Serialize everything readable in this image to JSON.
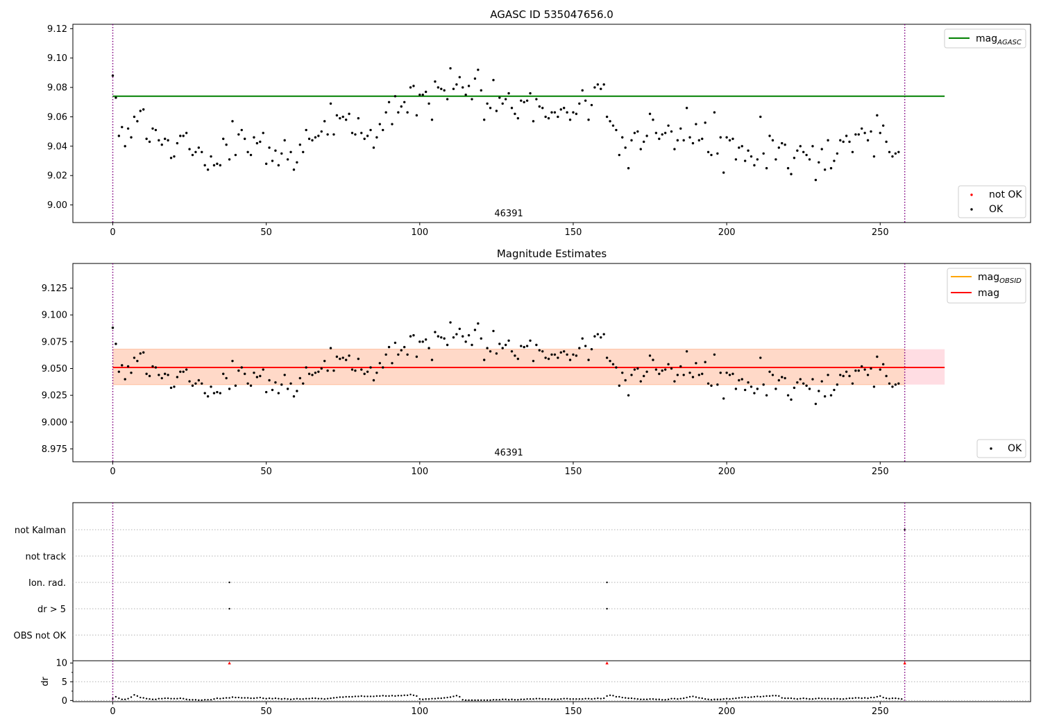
{
  "chart_data": [
    {
      "type": "scatter",
      "title": "AGASC ID 535047656.0",
      "xlim": [
        -13,
        299
      ],
      "ylim": [
        8.988,
        9.123
      ],
      "x_ticks": [
        0,
        50,
        100,
        150,
        200,
        250
      ],
      "y_ticks": [
        "9.00",
        "9.02",
        "9.04",
        "9.06",
        "9.08",
        "9.10",
        "9.12"
      ],
      "y_tick_values": [
        9.0,
        9.02,
        9.04,
        9.06,
        9.08,
        9.1,
        9.12
      ],
      "obsid_label": "46391",
      "obsid_label_x": 129,
      "vlines_x": [
        0,
        258
      ],
      "hline": {
        "y": 9.074,
        "x_range": [
          0,
          271
        ],
        "color": "#008000"
      },
      "legend_top": [
        {
          "label": "mag",
          "sub": "AGASC",
          "color": "#008000"
        }
      ],
      "legend_bottom": [
        {
          "label": "not OK",
          "color": "#ff0000"
        },
        {
          "label": "OK",
          "color": "#000000"
        }
      ],
      "series": [
        {
          "name": "OK",
          "color": "#000000",
          "values": "shared.mag"
        }
      ]
    },
    {
      "type": "scatter",
      "title": "Magnitude Estimates",
      "xlim": [
        -13,
        299
      ],
      "ylim": [
        8.963,
        9.148
      ],
      "x_ticks": [
        0,
        50,
        100,
        150,
        200,
        250
      ],
      "y_ticks": [
        "8.975",
        "9.000",
        "9.025",
        "9.050",
        "9.075",
        "9.100",
        "9.125"
      ],
      "y_tick_values": [
        8.975,
        9.0,
        9.025,
        9.05,
        9.075,
        9.1,
        9.125
      ],
      "obsid_label": "46391",
      "obsid_label_x": 129,
      "vlines_x": [
        0,
        258
      ],
      "mag_line": {
        "y": 9.051,
        "x_range": [
          0,
          271
        ],
        "color": "#ff0000"
      },
      "band_outer": {
        "y": [
          9.035,
          9.068
        ],
        "color": "#ffdde3"
      },
      "band_inner": {
        "y": [
          9.035,
          9.068
        ],
        "x_range": [
          0,
          258
        ],
        "color": "#ffd9c8"
      },
      "legend_top": [
        {
          "label": "mag",
          "sub": "OBSID",
          "color": "#ffa500"
        },
        {
          "label": "mag",
          "sub": "",
          "color": "#ff0000"
        }
      ],
      "legend_bottom": [
        {
          "label": "OK",
          "color": "#000000"
        }
      ],
      "series": [
        {
          "name": "OK",
          "color": "#000000",
          "values": "shared.mag"
        }
      ]
    },
    {
      "type": "scatter",
      "xlim": [
        -13,
        299
      ],
      "flag_labels": [
        "not Kalman",
        "not track",
        "Ion. rad.",
        "dr > 5",
        "OBS not OK"
      ],
      "flag_points": [
        {
          "flag": "not Kalman",
          "x": 258
        },
        {
          "flag": "Ion. rad.",
          "x": 38
        },
        {
          "flag": "Ion. rad.",
          "x": 161
        },
        {
          "flag": "dr > 5",
          "x": 38
        },
        {
          "flag": "dr > 5",
          "x": 161
        }
      ],
      "vlines_x": [
        0,
        258
      ]
    },
    {
      "type": "scatter",
      "xlim": [
        -13,
        299
      ],
      "ylim": [
        -0.3,
        10.6
      ],
      "ylabel": "dr",
      "x_ticks": [
        0,
        50,
        100,
        150,
        200,
        250
      ],
      "y_ticks": [
        "0",
        "5",
        "10"
      ],
      "y_tick_values": [
        0,
        5,
        10
      ],
      "capped_points": [
        {
          "x": 38,
          "y": 10
        },
        {
          "x": 161,
          "y": 10
        },
        {
          "x": 258,
          "y": 10
        }
      ],
      "vlines_x": [
        0,
        258
      ],
      "series": [
        {
          "name": "dr",
          "color": "#000000",
          "values": "shared.dr"
        }
      ]
    }
  ],
  "shared": {
    "mag": [
      9.088,
      9.073,
      9.047,
      9.053,
      9.04,
      9.052,
      9.046,
      9.06,
      9.057,
      9.064,
      9.065,
      9.045,
      9.043,
      9.052,
      9.051,
      9.044,
      9.041,
      9.045,
      9.044,
      9.032,
      9.033,
      9.042,
      9.047,
      9.047,
      9.049,
      9.038,
      9.034,
      9.036,
      9.039,
      9.036,
      9.027,
      9.024,
      9.033,
      9.027,
      9.028,
      9.027,
      9.045,
      9.041,
      9.031,
      9.057,
      9.034,
      9.048,
      9.051,
      9.045,
      9.036,
      9.034,
      9.046,
      9.042,
      9.043,
      9.049,
      9.028,
      9.039,
      9.03,
      9.037,
      9.027,
      9.035,
      9.044,
      9.031,
      9.036,
      9.024,
      9.029,
      9.041,
      9.036,
      9.051,
      9.045,
      9.044,
      9.046,
      9.047,
      9.05,
      9.057,
      9.048,
      9.069,
      9.048,
      9.061,
      9.059,
      9.06,
      9.058,
      9.062,
      9.049,
      9.048,
      9.059,
      9.049,
      9.045,
      9.047,
      9.051,
      9.039,
      9.046,
      9.055,
      9.051,
      9.063,
      9.07,
      9.055,
      9.074,
      9.063,
      9.067,
      9.07,
      9.063,
      9.08,
      9.081,
      9.061,
      9.075,
      9.075,
      9.077,
      9.069,
      9.058,
      9.084,
      9.08,
      9.079,
      9.078,
      9.072,
      9.093,
      9.079,
      9.082,
      9.087,
      9.08,
      9.075,
      9.081,
      9.072,
      9.086,
      9.092,
      9.078,
      9.058,
      9.069,
      9.066,
      9.085,
      9.064,
      9.073,
      9.069,
      9.072,
      9.076,
      9.066,
      9.062,
      9.059,
      9.071,
      9.07,
      9.071,
      9.076,
      9.057,
      9.072,
      9.067,
      9.066,
      9.06,
      9.059,
      9.063,
      9.063,
      9.06,
      9.065,
      9.066,
      9.063,
      9.058,
      9.063,
      9.062,
      9.069,
      9.078,
      9.071,
      9.058,
      9.068,
      9.08,
      9.082,
      9.079,
      9.082,
      9.06,
      9.057,
      9.054,
      9.051,
      9.034,
      9.046,
      9.039,
      9.025,
      9.044,
      9.049,
      9.05,
      9.038,
      9.043,
      9.047,
      9.062,
      9.058,
      9.049,
      9.045,
      9.048,
      9.049,
      9.054,
      9.05,
      9.038,
      9.044,
      9.052,
      9.044,
      9.066,
      9.046,
      9.042,
      9.055,
      9.044,
      9.045,
      9.056,
      9.036,
      9.034,
      9.063,
      9.035,
      9.046,
      9.022,
      9.046,
      9.044,
      9.045,
      9.031,
      9.039,
      9.04,
      9.03,
      9.037,
      9.033,
      9.027,
      9.031,
      9.06,
      9.035,
      9.025,
      9.047,
      9.044,
      9.031,
      9.039,
      9.042,
      9.041,
      9.025,
      9.021,
      9.032,
      9.037,
      9.04,
      9.036,
      9.034,
      9.031,
      9.04,
      9.017,
      9.029,
      9.038,
      9.024,
      9.044,
      9.025,
      9.03,
      9.035,
      9.044,
      9.043,
      9.047,
      9.043,
      9.036,
      9.048,
      9.048,
      9.052,
      9.049,
      9.044,
      9.05,
      9.033,
      9.061,
      9.049,
      9.054,
      9.043,
      9.036,
      9.033,
      9.035,
      9.036
    ],
    "dr": [
      0.5,
      1.0,
      0.6,
      0.3,
      0.3,
      0.5,
      0.9,
      1.5,
      1.2,
      0.8,
      0.7,
      0.5,
      0.4,
      0.3,
      0.3,
      0.5,
      0.5,
      0.6,
      0.6,
      0.5,
      0.5,
      0.5,
      0.6,
      0.5,
      0.3,
      0.2,
      0.2,
      0.2,
      0.1,
      0.1,
      0.2,
      0.2,
      0.2,
      0.4,
      0.6,
      0.5,
      0.6,
      0.7,
      0.7,
      0.9,
      0.8,
      0.8,
      0.7,
      0.7,
      0.7,
      0.6,
      0.6,
      0.7,
      0.8,
      0.6,
      0.5,
      0.6,
      0.5,
      0.6,
      0.5,
      0.4,
      0.5,
      0.4,
      0.3,
      0.4,
      0.5,
      0.4,
      0.4,
      0.5,
      0.5,
      0.6,
      0.6,
      0.5,
      0.5,
      0.4,
      0.5,
      0.6,
      0.7,
      0.8,
      0.9,
      0.9,
      1.0,
      1.0,
      1.0,
      1.1,
      1.1,
      1.2,
      1.1,
      1.1,
      1.1,
      1.1,
      1.2,
      1.2,
      1.3,
      1.2,
      1.2,
      1.3,
      1.2,
      1.3,
      1.3,
      1.4,
      1.4,
      1.6,
      1.4,
      1.2,
      0.4,
      0.3,
      0.4,
      0.4,
      0.5,
      0.5,
      0.6,
      0.6,
      0.7,
      0.8,
      0.9,
      1.1,
      1.3,
      1.0,
      0.2,
      0.1,
      0.1,
      0.1,
      0.1,
      0.1,
      0.1,
      0.1,
      0.1,
      0.1,
      0.2,
      0.2,
      0.2,
      0.3,
      0.3,
      0.2,
      0.3,
      0.2,
      0.2,
      0.3,
      0.3,
      0.4,
      0.4,
      0.4,
      0.5,
      0.5,
      0.4,
      0.4,
      0.4,
      0.3,
      0.3,
      0.3,
      0.4,
      0.5,
      0.5,
      0.4,
      0.4,
      0.4,
      0.4,
      0.4,
      0.5,
      0.5,
      0.4,
      0.5,
      0.6,
      0.5,
      0.6,
      1.2,
      1.4,
      1.3,
      1.0,
      1.0,
      0.8,
      0.7,
      0.6,
      0.6,
      0.5,
      0.4,
      0.3,
      0.3,
      0.3,
      0.4,
      0.4,
      0.3,
      0.3,
      0.2,
      0.2,
      0.3,
      0.5,
      0.5,
      0.4,
      0.5,
      0.6,
      0.8,
      1.0,
      1.1,
      0.9,
      0.7,
      0.6,
      0.4,
      0.3,
      0.2,
      0.3,
      0.3,
      0.3,
      0.4,
      0.5,
      0.4,
      0.5,
      0.6,
      0.7,
      0.8,
      0.9,
      0.8,
      0.9,
      1.0,
      1.1,
      1.0,
      1.1,
      1.2,
      1.2,
      1.3,
      1.3,
      1.2,
      0.7,
      0.6,
      0.6,
      0.6,
      0.5,
      0.4,
      0.5,
      0.6,
      0.5,
      0.4,
      0.4,
      0.5,
      0.6,
      0.5,
      0.5,
      0.5,
      0.4,
      0.5,
      0.5,
      0.4,
      0.4,
      0.5,
      0.6,
      0.6,
      0.7,
      0.7,
      0.6,
      0.7,
      0.6,
      0.8,
      0.8,
      1.0,
      1.2,
      0.8,
      0.6,
      0.5,
      0.6,
      0.6,
      0.5,
      0.4
    ]
  }
}
